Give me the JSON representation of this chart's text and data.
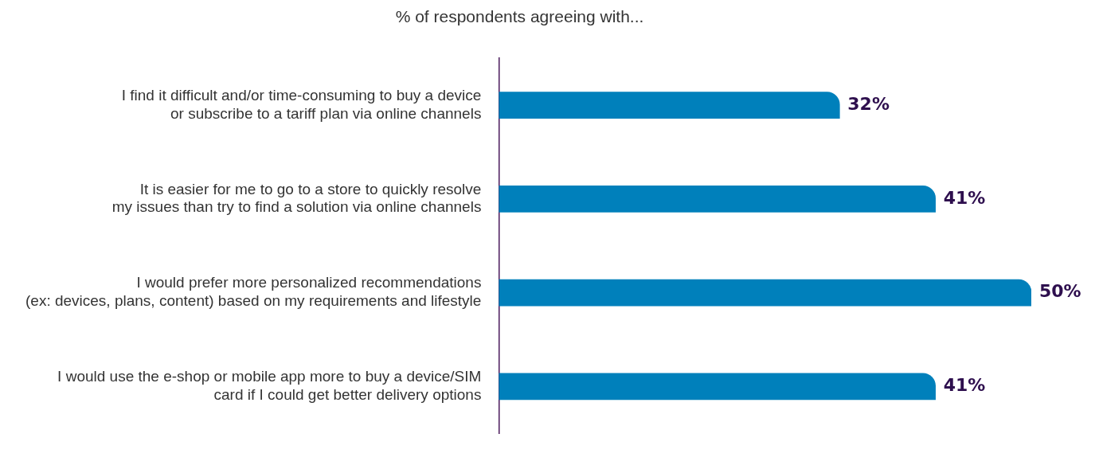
{
  "chart_data": {
    "type": "bar",
    "orientation": "horizontal",
    "title": "% of respondents agreeing with...",
    "categories": [
      "I find it difficult and/or time-consuming to buy a device\nor subscribe to a tariff plan via online channels",
      "It is easier for me to go to a store to quickly resolve\nmy issues than try to find a solution via online channels",
      "I would prefer more personalized recommendations\n(ex: devices, plans, content) based on my requirements and lifestyle",
      "I would use the e-shop or mobile app more to buy a device/SIM\ncard if I could get better delivery options"
    ],
    "values": [
      32,
      41,
      50,
      41
    ],
    "value_labels": [
      "32%",
      "41%",
      "50%",
      "41%"
    ],
    "color": "#0080bb",
    "legend": false
  }
}
